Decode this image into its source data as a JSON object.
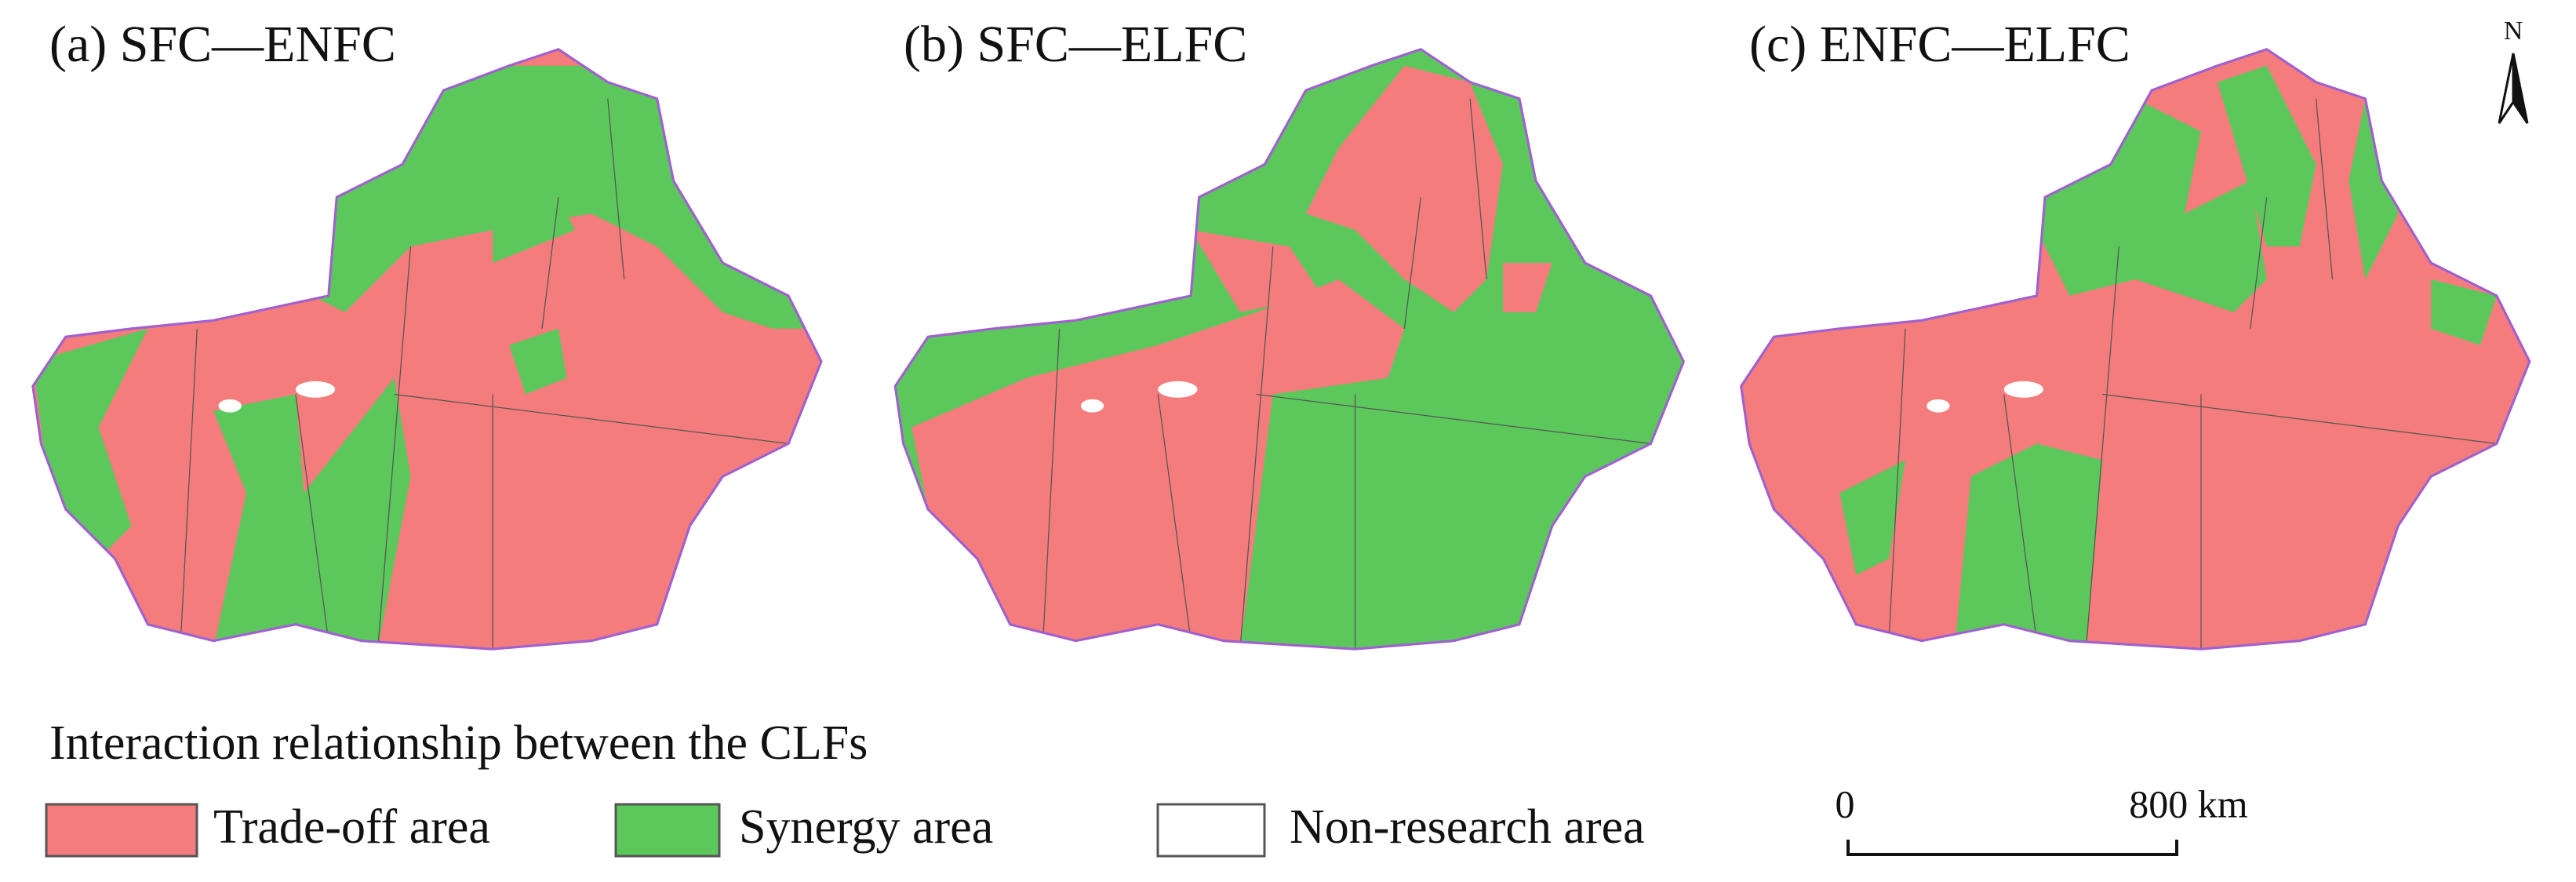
{
  "panels": [
    {
      "title": "(a) SFC—ENFC"
    },
    {
      "title": "(b) SFC—ELFC"
    },
    {
      "title": "(c) ENFC—ELFC"
    }
  ],
  "north": "N",
  "legend": {
    "title": "Interaction relationship between the CLFs",
    "items": [
      {
        "label": "Trade-off area",
        "color": "#f47c7c"
      },
      {
        "label": "Synergy area",
        "color": "#5cc85c"
      },
      {
        "label": "Non-research area",
        "color": "#ffffff"
      }
    ]
  },
  "scale_bar": {
    "labels": [
      "0",
      "800 km"
    ]
  }
}
